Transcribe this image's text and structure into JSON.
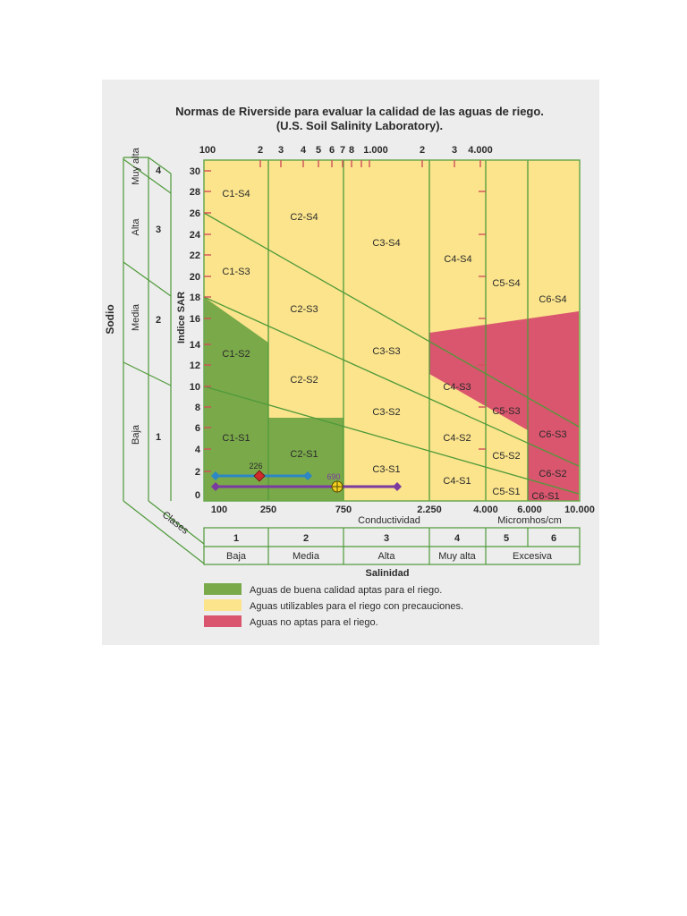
{
  "title": {
    "line1": "Normas de Riverside para evaluar la calidad de las aguas de riego.",
    "line2": "(U.S. Soil Salinity Laboratory)."
  },
  "colors": {
    "green": "#7aa94a",
    "yellow": "#fbe48c",
    "red": "#d9566e",
    "line": "#4f9a3a",
    "tick": "#d0505a",
    "frame": "#6aa84f"
  },
  "top_axis": {
    "labels": [
      "100",
      "2",
      "3",
      "4",
      "5",
      "6",
      "7",
      "8",
      "1.000",
      "2",
      "3",
      "4.000"
    ]
  },
  "y_axis": {
    "title": "Indice SAR",
    "ticks": [
      "30",
      "28",
      "26",
      "24",
      "22",
      "20",
      "18",
      "16",
      "14",
      "12",
      "10",
      "8",
      "6",
      "4",
      "2",
      "0"
    ]
  },
  "sodium": {
    "title": "Sodio",
    "levels": [
      {
        "name": "Muy alta",
        "class": "4"
      },
      {
        "name": "Alta",
        "class": "3"
      },
      {
        "name": "Media",
        "class": "2"
      },
      {
        "name": "Baja",
        "class": "1"
      }
    ]
  },
  "zones": [
    "C1-S4",
    "C2-S4",
    "C3-S4",
    "C4-S4",
    "C5-S4",
    "C6-S4",
    "C1-S3",
    "C2-S3",
    "C3-S3",
    "C4-S3",
    "C5-S3",
    "C6-S3",
    "C1-S2",
    "C2-S2",
    "C3-S2",
    "C4-S2",
    "C5-S2",
    "C6-S2",
    "C1-S1",
    "C2-S1",
    "C3-S1",
    "C4-S1",
    "C5-S1",
    "C6-S1"
  ],
  "bottom_axis": {
    "labels": [
      "100",
      "250",
      "750",
      "2.250",
      "4.000",
      "6.000",
      "10.000"
    ],
    "title": "Conductividad",
    "unit": "Micromhos/cm"
  },
  "markers": [
    {
      "label": "226",
      "color": "#d02a2a"
    },
    {
      "label": "690",
      "color": "#f2d021"
    }
  ],
  "ranges": [
    {
      "color": "#2d86c6"
    },
    {
      "color": "#7a3aa0"
    }
  ],
  "classes_label": "Clases",
  "salinity": {
    "title": "Salinidad",
    "classes": [
      "1",
      "2",
      "3",
      "4",
      "5",
      "6"
    ],
    "levels": [
      "Baja",
      "Media",
      "Alta",
      "Muy alta",
      "Excesiva"
    ]
  },
  "legend": [
    {
      "text": "Aguas de buena calidad aptas para el riego.",
      "color": "#7aa94a"
    },
    {
      "text": "Aguas utilizables para el riego con precauciones.",
      "color": "#fbe48c"
    },
    {
      "text": "Aguas no aptas para el riego.",
      "color": "#d9566e"
    }
  ]
}
